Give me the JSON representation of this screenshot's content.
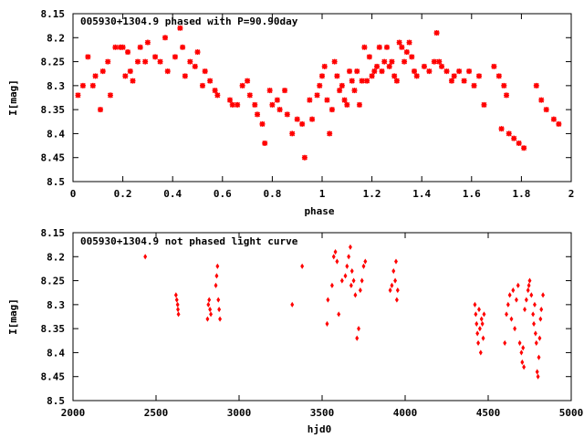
{
  "chart_data": [
    {
      "type": "scatter",
      "title": "005930+1304.9 phased with P=90.90day",
      "xlabel": "phase",
      "ylabel": "I[mag]",
      "xlim": [
        0,
        2
      ],
      "ylim": [
        8.15,
        8.5
      ],
      "y_inverted": true,
      "xticks": [
        "0",
        "0.2",
        "0.4",
        "0.6",
        "0.8",
        "1",
        "1.2",
        "1.4",
        "1.6",
        "1.8",
        "2"
      ],
      "yticks": [
        "8.15",
        "8.2",
        "8.25",
        "8.3",
        "8.35",
        "8.4",
        "8.45",
        "8.5"
      ],
      "marker": "star",
      "color": "#ff0000",
      "points": [
        [
          0.02,
          8.32
        ],
        [
          0.04,
          8.3
        ],
        [
          0.06,
          8.24
        ],
        [
          0.08,
          8.3
        ],
        [
          0.09,
          8.28
        ],
        [
          0.11,
          8.35
        ],
        [
          0.12,
          8.27
        ],
        [
          0.14,
          8.25
        ],
        [
          0.15,
          8.32
        ],
        [
          0.17,
          8.22
        ],
        [
          0.19,
          8.22
        ],
        [
          0.2,
          8.22
        ],
        [
          0.21,
          8.28
        ],
        [
          0.22,
          8.23
        ],
        [
          0.23,
          8.27
        ],
        [
          0.24,
          8.29
        ],
        [
          0.26,
          8.25
        ],
        [
          0.27,
          8.22
        ],
        [
          0.29,
          8.25
        ],
        [
          0.3,
          8.21
        ],
        [
          0.33,
          8.24
        ],
        [
          0.35,
          8.25
        ],
        [
          0.37,
          8.2
        ],
        [
          0.38,
          8.27
        ],
        [
          0.41,
          8.24
        ],
        [
          0.43,
          8.18
        ],
        [
          0.44,
          8.22
        ],
        [
          0.45,
          8.28
        ],
        [
          0.47,
          8.25
        ],
        [
          0.49,
          8.26
        ],
        [
          0.5,
          8.23
        ],
        [
          0.52,
          8.3
        ],
        [
          0.53,
          8.27
        ],
        [
          0.55,
          8.29
        ],
        [
          0.57,
          8.31
        ],
        [
          0.58,
          8.32
        ],
        [
          0.63,
          8.33
        ],
        [
          0.64,
          8.34
        ],
        [
          0.66,
          8.34
        ],
        [
          0.68,
          8.3
        ],
        [
          0.7,
          8.29
        ],
        [
          0.71,
          8.32
        ],
        [
          0.73,
          8.34
        ],
        [
          0.74,
          8.36
        ],
        [
          0.76,
          8.38
        ],
        [
          0.77,
          8.42
        ],
        [
          0.79,
          8.31
        ],
        [
          0.8,
          8.34
        ],
        [
          0.82,
          8.33
        ],
        [
          0.83,
          8.35
        ],
        [
          0.85,
          8.31
        ],
        [
          0.86,
          8.36
        ],
        [
          0.88,
          8.4
        ],
        [
          0.9,
          8.37
        ],
        [
          0.92,
          8.38
        ],
        [
          0.93,
          8.45
        ],
        [
          0.95,
          8.33
        ],
        [
          0.96,
          8.37
        ],
        [
          0.98,
          8.32
        ],
        [
          0.99,
          8.3
        ],
        [
          1.0,
          8.28
        ],
        [
          1.01,
          8.26
        ],
        [
          1.02,
          8.33
        ],
        [
          1.03,
          8.4
        ],
        [
          1.04,
          8.35
        ],
        [
          1.05,
          8.25
        ],
        [
          1.06,
          8.28
        ],
        [
          1.07,
          8.31
        ],
        [
          1.08,
          8.3
        ],
        [
          1.09,
          8.33
        ],
        [
          1.1,
          8.34
        ],
        [
          1.11,
          8.27
        ],
        [
          1.12,
          8.29
        ],
        [
          1.13,
          8.31
        ],
        [
          1.14,
          8.27
        ],
        [
          1.15,
          8.34
        ],
        [
          1.16,
          8.29
        ],
        [
          1.17,
          8.22
        ],
        [
          1.18,
          8.29
        ],
        [
          1.19,
          8.24
        ],
        [
          1.2,
          8.28
        ],
        [
          1.21,
          8.27
        ],
        [
          1.22,
          8.26
        ],
        [
          1.23,
          8.22
        ],
        [
          1.24,
          8.27
        ],
        [
          1.25,
          8.25
        ],
        [
          1.26,
          8.22
        ],
        [
          1.27,
          8.26
        ],
        [
          1.28,
          8.25
        ],
        [
          1.29,
          8.28
        ],
        [
          1.3,
          8.29
        ],
        [
          1.31,
          8.21
        ],
        [
          1.32,
          8.22
        ],
        [
          1.33,
          8.25
        ],
        [
          1.34,
          8.23
        ],
        [
          1.35,
          8.21
        ],
        [
          1.36,
          8.24
        ],
        [
          1.37,
          8.27
        ],
        [
          1.38,
          8.28
        ],
        [
          1.41,
          8.26
        ],
        [
          1.43,
          8.27
        ],
        [
          1.45,
          8.25
        ],
        [
          1.46,
          8.19
        ],
        [
          1.47,
          8.25
        ],
        [
          1.48,
          8.26
        ],
        [
          1.5,
          8.27
        ],
        [
          1.52,
          8.29
        ],
        [
          1.53,
          8.28
        ],
        [
          1.55,
          8.27
        ],
        [
          1.57,
          8.29
        ],
        [
          1.59,
          8.27
        ],
        [
          1.61,
          8.3
        ],
        [
          1.63,
          8.28
        ],
        [
          1.65,
          8.34
        ],
        [
          1.69,
          8.26
        ],
        [
          1.71,
          8.28
        ],
        [
          1.72,
          8.39
        ],
        [
          1.73,
          8.3
        ],
        [
          1.74,
          8.32
        ],
        [
          1.75,
          8.4
        ],
        [
          1.77,
          8.41
        ],
        [
          1.79,
          8.42
        ],
        [
          1.81,
          8.43
        ],
        [
          1.86,
          8.3
        ],
        [
          1.88,
          8.33
        ],
        [
          1.9,
          8.35
        ],
        [
          1.93,
          8.37
        ],
        [
          1.95,
          8.38
        ]
      ]
    },
    {
      "type": "scatter",
      "title": "005930+1304.9 not phased light curve",
      "xlabel": "hjd0",
      "ylabel": "I[mag]",
      "xlim": [
        2000,
        5000
      ],
      "ylim": [
        8.15,
        8.5
      ],
      "y_inverted": true,
      "xticks": [
        "2000",
        "2500",
        "3000",
        "3500",
        "4000",
        "4500",
        "5000"
      ],
      "yticks": [
        "8.15",
        "8.2",
        "8.25",
        "8.3",
        "8.35",
        "8.4",
        "8.45",
        "8.5"
      ],
      "marker": "diamond",
      "color": "#ff0000",
      "points": [
        [
          2435,
          8.2
        ],
        [
          2620,
          8.28
        ],
        [
          2625,
          8.29
        ],
        [
          2630,
          8.3
        ],
        [
          2632,
          8.31
        ],
        [
          2635,
          8.32
        ],
        [
          2810,
          8.33
        ],
        [
          2815,
          8.3
        ],
        [
          2820,
          8.29
        ],
        [
          2825,
          8.31
        ],
        [
          2830,
          8.32
        ],
        [
          2860,
          8.26
        ],
        [
          2865,
          8.24
        ],
        [
          2870,
          8.22
        ],
        [
          2875,
          8.29
        ],
        [
          2880,
          8.31
        ],
        [
          2885,
          8.33
        ],
        [
          3320,
          8.3
        ],
        [
          3380,
          8.22
        ],
        [
          3530,
          8.34
        ],
        [
          3535,
          8.29
        ],
        [
          3560,
          8.26
        ],
        [
          3570,
          8.2
        ],
        [
          3580,
          8.19
        ],
        [
          3590,
          8.21
        ],
        [
          3600,
          8.32
        ],
        [
          3620,
          8.25
        ],
        [
          3640,
          8.24
        ],
        [
          3650,
          8.22
        ],
        [
          3660,
          8.2
        ],
        [
          3670,
          8.18
        ],
        [
          3675,
          8.26
        ],
        [
          3680,
          8.23
        ],
        [
          3690,
          8.25
        ],
        [
          3700,
          8.28
        ],
        [
          3710,
          8.37
        ],
        [
          3720,
          8.35
        ],
        [
          3730,
          8.27
        ],
        [
          3740,
          8.25
        ],
        [
          3750,
          8.22
        ],
        [
          3760,
          8.21
        ],
        [
          3910,
          8.27
        ],
        [
          3920,
          8.26
        ],
        [
          3930,
          8.23
        ],
        [
          3940,
          8.25
        ],
        [
          3945,
          8.21
        ],
        [
          3950,
          8.29
        ],
        [
          3955,
          8.27
        ],
        [
          4420,
          8.3
        ],
        [
          4425,
          8.32
        ],
        [
          4430,
          8.34
        ],
        [
          4435,
          8.36
        ],
        [
          4440,
          8.38
        ],
        [
          4445,
          8.31
        ],
        [
          4450,
          8.35
        ],
        [
          4455,
          8.4
        ],
        [
          4460,
          8.33
        ],
        [
          4465,
          8.34
        ],
        [
          4470,
          8.37
        ],
        [
          4475,
          8.32
        ],
        [
          4600,
          8.38
        ],
        [
          4610,
          8.32
        ],
        [
          4620,
          8.3
        ],
        [
          4630,
          8.28
        ],
        [
          4640,
          8.33
        ],
        [
          4650,
          8.27
        ],
        [
          4660,
          8.35
        ],
        [
          4670,
          8.29
        ],
        [
          4680,
          8.26
        ],
        [
          4690,
          8.38
        ],
        [
          4700,
          8.4
        ],
        [
          4705,
          8.42
        ],
        [
          4710,
          8.39
        ],
        [
          4715,
          8.43
        ],
        [
          4720,
          8.31
        ],
        [
          4730,
          8.29
        ],
        [
          4740,
          8.27
        ],
        [
          4745,
          8.26
        ],
        [
          4750,
          8.25
        ],
        [
          4760,
          8.28
        ],
        [
          4770,
          8.32
        ],
        [
          4775,
          8.34
        ],
        [
          4780,
          8.3
        ],
        [
          4785,
          8.36
        ],
        [
          4790,
          8.38
        ],
        [
          4795,
          8.44
        ],
        [
          4800,
          8.45
        ],
        [
          4805,
          8.41
        ],
        [
          4810,
          8.37
        ],
        [
          4815,
          8.33
        ],
        [
          4820,
          8.31
        ],
        [
          4830,
          8.28
        ]
      ]
    }
  ]
}
